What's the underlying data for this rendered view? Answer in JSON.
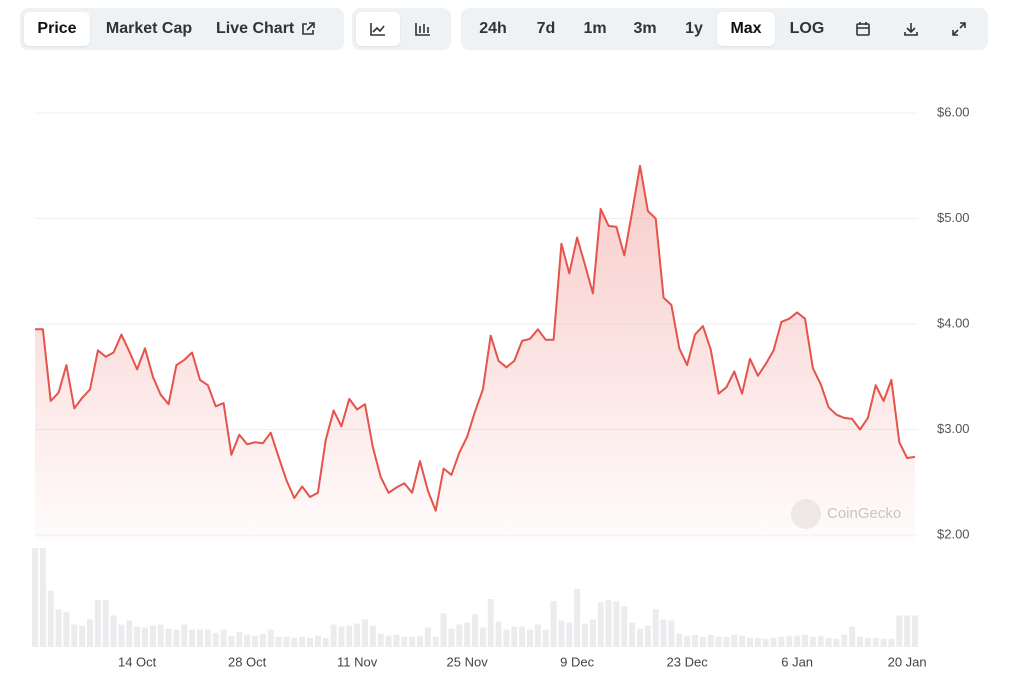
{
  "toolbar": {
    "tabs": [
      "Price",
      "Market Cap",
      "Live Chart"
    ],
    "selected_tab": 0,
    "ranges": [
      "24h",
      "7d",
      "1m",
      "3m",
      "1y",
      "Max",
      "LOG"
    ],
    "selected_range": 5
  },
  "watermark": "CoinGecko",
  "chart_data": {
    "type": "line",
    "x": [
      0,
      1,
      2,
      3,
      4,
      5,
      6,
      7,
      8,
      9,
      10,
      11,
      12,
      13,
      14,
      15,
      16,
      17,
      18,
      19,
      20,
      21,
      22,
      23,
      24,
      25,
      26,
      27,
      28,
      29,
      30,
      31,
      32,
      33,
      34,
      35,
      36,
      37,
      38,
      39,
      40,
      41,
      42,
      43,
      44,
      45,
      46,
      47,
      48,
      49,
      50,
      51,
      52,
      53,
      54,
      55,
      56,
      57,
      58,
      59,
      60,
      61,
      62,
      63,
      64,
      65,
      66,
      67,
      68,
      69,
      70,
      71,
      72,
      73,
      74,
      75,
      76,
      77,
      78,
      79,
      80,
      81,
      82,
      83,
      84,
      85,
      86,
      87,
      88,
      89,
      90,
      91,
      92,
      93,
      94,
      95,
      96,
      97,
      98,
      99,
      100,
      101,
      102,
      103,
      104,
      105,
      106,
      107,
      108,
      109,
      110,
      111,
      112
    ],
    "series": [
      {
        "color": "#e5534b",
        "values": [
          3.95,
          3.95,
          3.27,
          3.35,
          3.61,
          3.2,
          3.3,
          3.38,
          3.75,
          3.69,
          3.73,
          3.9,
          3.74,
          3.57,
          3.77,
          3.5,
          3.33,
          3.24,
          3.61,
          3.66,
          3.73,
          3.47,
          3.42,
          3.22,
          3.25,
          2.76,
          2.95,
          2.86,
          2.88,
          2.87,
          2.97,
          2.74,
          2.52,
          2.35,
          2.46,
          2.36,
          2.4,
          2.9,
          3.18,
          3.03,
          3.29,
          3.19,
          3.24,
          2.83,
          2.55,
          2.4,
          2.45,
          2.49,
          2.4,
          2.7,
          2.42,
          2.23,
          2.63,
          2.57,
          2.78,
          2.93,
          3.17,
          3.38,
          3.89,
          3.65,
          3.59,
          3.65,
          3.84,
          3.86,
          3.95,
          3.85,
          3.85,
          4.76,
          4.48,
          4.82,
          4.56,
          4.29,
          5.09,
          4.93,
          4.92,
          4.65,
          5.06,
          5.5,
          5.07,
          5,
          4.25,
          4.18,
          3.77,
          3.61,
          3.9,
          3.98,
          3.76,
          3.34,
          3.4,
          3.55,
          3.34,
          3.67,
          3.51,
          3.62,
          3.75,
          4.02,
          4.05,
          4.11,
          4.05,
          3.58,
          3.43,
          3.21,
          3.14,
          3.11,
          3.1,
          3,
          3.11,
          3.42,
          3.27,
          3.47,
          2.88,
          2.73,
          2.74
        ]
      },
      {
        "color": "#ececef",
        "axis": "y2",
        "values": [
          97,
          97,
          55,
          37,
          34,
          22,
          21,
          27,
          46,
          46,
          31,
          22,
          26,
          20,
          19,
          21,
          22,
          18,
          17,
          22,
          17,
          17,
          17,
          14,
          17,
          11,
          15,
          12,
          11,
          13,
          17,
          10,
          10,
          9,
          10,
          9,
          11,
          9,
          22,
          20,
          21,
          23,
          27,
          21,
          13,
          11,
          12,
          10,
          10,
          11,
          19,
          10,
          33,
          18,
          22,
          24,
          32,
          19,
          47,
          25,
          17,
          20,
          20,
          17,
          22,
          17,
          45,
          26,
          24,
          57,
          23,
          27,
          44,
          46,
          45,
          40,
          24,
          18,
          21,
          37,
          27,
          26,
          13,
          11,
          12,
          10,
          12,
          10,
          10,
          12,
          11,
          9,
          9,
          8,
          9,
          10,
          11,
          11,
          12,
          10,
          11,
          9,
          8,
          12,
          20,
          10,
          9,
          9,
          8,
          8,
          31,
          31,
          31
        ]
      }
    ],
    "xlim": [
      0,
      112
    ],
    "xticks": [
      {
        "value": 13,
        "label": "14 Oct"
      },
      {
        "value": 27,
        "label": "28 Oct"
      },
      {
        "value": 41,
        "label": "11 Nov"
      },
      {
        "value": 55,
        "label": "25 Nov"
      },
      {
        "value": 69,
        "label": "9 Dec"
      },
      {
        "value": 83,
        "label": "23 Dec"
      },
      {
        "value": 97,
        "label": "6 Jan"
      },
      {
        "value": 111,
        "label": "20 Jan"
      }
    ],
    "ylim": [
      2,
      6
    ],
    "yticks": [
      {
        "value": 2,
        "label": "$2.00"
      },
      {
        "value": 3,
        "label": "$3.00"
      },
      {
        "value": 4,
        "label": "$4.00"
      },
      {
        "value": 5,
        "label": "$5.00"
      },
      {
        "value": 6,
        "label": "$6.00"
      }
    ],
    "y2lim": [
      0,
      100
    ],
    "grid": true
  }
}
